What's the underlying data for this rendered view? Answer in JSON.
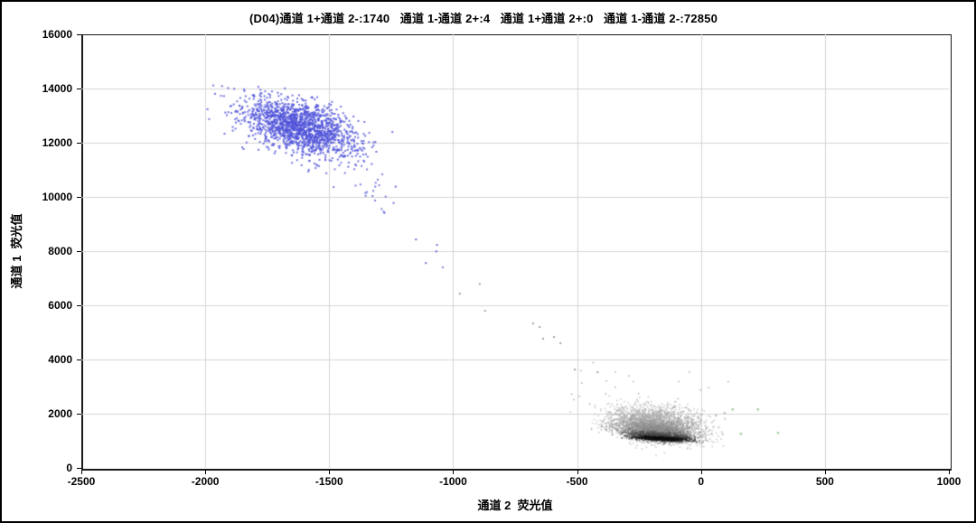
{
  "figure": {
    "title": "(D04)通道 1+通道 2-:1740   通道 1-通道 2+:4   通道 1+通道 2+:0   通道 1-通道 2-:72850"
  },
  "chart_data": {
    "type": "scatter",
    "title": "(D04)通道 1+通道 2-:1740   通道 1-通道 2+:4   通道 1+通道 2+:0   通道 1-通道 2-:72850",
    "well_id": "D04",
    "xlabel": "通道 2  荧光值",
    "ylabel": "通道 1  荧光值",
    "xlim": [
      -2500,
      1000
    ],
    "ylim": [
      0,
      16000
    ],
    "x_ticks": [
      -2500,
      -2000,
      -1500,
      -1000,
      -500,
      0,
      500,
      1000
    ],
    "y_ticks": [
      0,
      2000,
      4000,
      6000,
      8000,
      10000,
      12000,
      14000,
      16000
    ],
    "grid": true,
    "grid_color": "#d4d4d4",
    "axis_color": "#000000",
    "legend": "none",
    "quadrant_stats": [
      {
        "label": "通道 1+通道 2-",
        "count": 1740,
        "color": "#4f52d8"
      },
      {
        "label": "通道 1-通道 2+",
        "count": 4,
        "color": "#a5d3a5"
      },
      {
        "label": "通道 1+通道 2+",
        "count": 0,
        "color": null
      },
      {
        "label": "通道 1-通道 2-",
        "count": 72850,
        "color": "#8c8c8c"
      }
    ],
    "seed": 1234,
    "clusters": [
      {
        "name": "ch1-positive-main",
        "population": "通道 1+通道 2-",
        "render_count": 1650,
        "cx": -1615,
        "cy": 12580,
        "sx": 118,
        "sy": 540,
        "rho": -0.5,
        "color": "#4f52d8",
        "alpha": 0.8,
        "size": 2
      },
      {
        "name": "ch1-positive-tail",
        "population": "通道 1+通道 2-",
        "render_count": 28,
        "cx": -1370,
        "cy": 10600,
        "sx": 60,
        "sy": 620,
        "rho": -0.75,
        "color": "#5b5ed6",
        "alpha": 0.8,
        "size": 2
      },
      {
        "name": "double-negative-outer",
        "population": "通道 1-通道 2-",
        "render_count": 2400,
        "cx": -185,
        "cy": 1620,
        "sx": 92,
        "sy": 310,
        "rho": -0.25,
        "color": "#a6a6a6",
        "alpha": 0.55,
        "size": 1.6
      },
      {
        "name": "double-negative-mid",
        "population": "通道 1-通道 2-",
        "render_count": 1700,
        "cx": -175,
        "cy": 1330,
        "sx": 76,
        "sy": 180,
        "rho": -0.35,
        "color": "#8c8c8c",
        "alpha": 0.5,
        "size": 1.6
      },
      {
        "name": "double-negative-dense",
        "population": "通道 1-通道 2-",
        "render_count": 1100,
        "cx": -168,
        "cy": 1150,
        "sx": 62,
        "sy": 90,
        "rho": -0.5,
        "color": "#4a4a4a",
        "alpha": 0.5,
        "size": 1.6
      },
      {
        "name": "double-negative-core",
        "population": "通道 1-通道 2-",
        "render_count": 650,
        "cx": -165,
        "cy": 1085,
        "sx": 50,
        "sy": 40,
        "rho": -0.55,
        "color": "#101010",
        "alpha": 0.5,
        "size": 1.6
      },
      {
        "name": "stray-northwest",
        "population": "通道 1-通道 2-",
        "render_count": 15,
        "cx": -400,
        "cy": 2950,
        "sx": 85,
        "sy": 430,
        "rho": 0,
        "color": "#9c9c9c",
        "alpha": 0.85,
        "size": 1.5
      },
      {
        "name": "stray-north",
        "population": "通道 1-通道 2-",
        "render_count": 6,
        "cx": -45,
        "cy": 3250,
        "sx": 70,
        "sy": 300,
        "rho": 0,
        "color": "#9c9c9c",
        "alpha": 0.85,
        "size": 1.5
      }
    ],
    "trail_points": [
      {
        "x": -1280,
        "y": 9450,
        "color": "#5b5ed6"
      },
      {
        "x": -1232,
        "y": 10380,
        "color": "#5b5ed6"
      },
      {
        "x": -1150,
        "y": 8430,
        "color": "#5b5ed6"
      },
      {
        "x": -1065,
        "y": 8230,
        "color": "#5b5ed6"
      },
      {
        "x": -1068,
        "y": 7990,
        "color": "#5b5ed6"
      },
      {
        "x": -1110,
        "y": 7560,
        "color": "#5b5ed6"
      },
      {
        "x": -1042,
        "y": 7400,
        "color": "#7a7ccf"
      },
      {
        "x": -893,
        "y": 6790,
        "color": "#97979f"
      },
      {
        "x": -973,
        "y": 6430,
        "color": "#97979f"
      },
      {
        "x": -871,
        "y": 5800,
        "color": "#97979f"
      },
      {
        "x": -677,
        "y": 5330,
        "color": "#97979f"
      },
      {
        "x": -651,
        "y": 5200,
        "color": "#97979f"
      },
      {
        "x": -637,
        "y": 4770,
        "color": "#97979f"
      },
      {
        "x": -593,
        "y": 4830,
        "color": "#97979f"
      },
      {
        "x": -567,
        "y": 4600,
        "color": "#97979f"
      },
      {
        "x": -509,
        "y": 3630,
        "color": "#97979f"
      },
      {
        "x": -417,
        "y": 3530,
        "color": "#97979f"
      },
      {
        "x": 60,
        "y": 1930,
        "color": "#a8a8a8"
      },
      {
        "x": 95,
        "y": 2030,
        "color": "#a8a8a8"
      }
    ],
    "green_points": [
      {
        "x": 127,
        "y": 2167
      },
      {
        "x": 229,
        "y": 2167
      },
      {
        "x": 160,
        "y": 1267
      },
      {
        "x": 310,
        "y": 1300
      }
    ],
    "green_color": "#a5d3a5"
  }
}
